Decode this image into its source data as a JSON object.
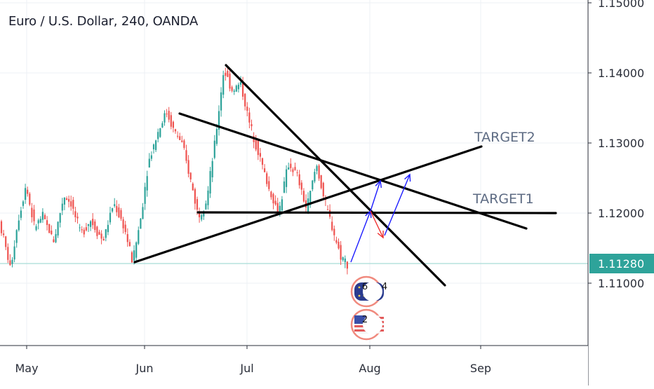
{
  "header": {
    "symbol_title": "Euro / U.S. Dollar, 240, OANDA"
  },
  "chart_data": {
    "type": "candlestick",
    "title": "Euro / U.S. Dollar, 240, OANDA",
    "price_axis": {
      "ticks": [
        "1.15000",
        "1.14000",
        "1.13000",
        "1.12000",
        "1.11000"
      ],
      "tick_values": [
        1.15,
        1.14,
        1.13,
        1.12,
        1.11
      ],
      "range": [
        1.0915,
        1.15
      ]
    },
    "time_axis": {
      "labels": [
        "May",
        "Jun",
        "Jul",
        "Aug",
        "Sep"
      ]
    },
    "last_price": {
      "label": "1.11280",
      "value": 1.1128,
      "color": "#2ea39a"
    },
    "colors": {
      "up": "#2ea39a",
      "down": "#ef5350",
      "trendline": "#000000",
      "arrow_up": "#1c1cff",
      "arrow_down": "#ef3030"
    },
    "price_path": [
      [
        0,
        1.1195
      ],
      [
        8,
        1.1165
      ],
      [
        18,
        1.112
      ],
      [
        28,
        1.1185
      ],
      [
        40,
        1.124
      ],
      [
        52,
        1.118
      ],
      [
        64,
        1.1195
      ],
      [
        80,
        1.116
      ],
      [
        94,
        1.1225
      ],
      [
        104,
        1.1215
      ],
      [
        118,
        1.117
      ],
      [
        132,
        1.119
      ],
      [
        150,
        1.116
      ],
      [
        165,
        1.1215
      ],
      [
        180,
        1.118
      ],
      [
        192,
        1.113
      ],
      [
        204,
        1.1195
      ],
      [
        214,
        1.127
      ],
      [
        226,
        1.131
      ],
      [
        240,
        1.1345
      ],
      [
        250,
        1.132
      ],
      [
        262,
        1.13
      ],
      [
        274,
        1.125
      ],
      [
        286,
        1.1195
      ],
      [
        298,
        1.122
      ],
      [
        310,
        1.1305
      ],
      [
        322,
        1.1405
      ],
      [
        334,
        1.1375
      ],
      [
        346,
        1.1385
      ],
      [
        358,
        1.133
      ],
      [
        372,
        1.1285
      ],
      [
        386,
        1.1235
      ],
      [
        400,
        1.12
      ],
      [
        414,
        1.127
      ],
      [
        426,
        1.1255
      ],
      [
        440,
        1.1205
      ],
      [
        454,
        1.127
      ],
      [
        466,
        1.1215
      ],
      [
        478,
        1.1175
      ],
      [
        488,
        1.114
      ],
      [
        498,
        1.1128
      ]
    ],
    "trendlines": [
      {
        "from": [
          192,
          1.113
        ],
        "to": [
          686,
          1.1295
        ]
      },
      {
        "from": [
          256,
          1.1342
        ],
        "to": [
          750,
          1.1178
        ]
      },
      {
        "from": [
          322,
          1.1411
        ],
        "to": [
          634,
          1.1097
        ]
      },
      {
        "from": [
          282,
          1.1201
        ],
        "to": [
          792,
          1.12
        ]
      }
    ],
    "annotations": [
      {
        "text": "TARGET2",
        "x": 676,
        "y": 1.1302
      },
      {
        "text": "TARGET1",
        "x": 674,
        "y": 1.1214
      }
    ],
    "arrows": [
      {
        "color": "arrow_up",
        "from": [
          500,
          1.113
        ],
        "to": [
          528,
          1.1203
        ]
      },
      {
        "color": "arrow_down",
        "from": [
          528,
          1.1203
        ],
        "to": [
          546,
          1.1165
        ]
      },
      {
        "color": "arrow_up",
        "from": [
          548,
          1.1168
        ],
        "to": [
          584,
          1.1255
        ]
      },
      {
        "color": "arrow_up",
        "from": [
          528,
          1.1203
        ],
        "to": [
          542,
          1.1246
        ]
      }
    ],
    "event_badges": [
      {
        "label": "6",
        "label2": "4",
        "kind": "eu-flag-icon"
      },
      {
        "label": "2",
        "label2": "",
        "kind": "us-flag-icon"
      }
    ]
  }
}
